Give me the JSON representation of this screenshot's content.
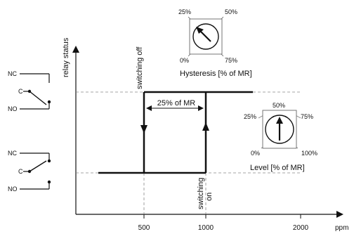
{
  "axes": {
    "y_label": "relay status",
    "x_unit": "ppm",
    "x_ticks": [
      "500",
      "1000",
      "2000"
    ]
  },
  "annotations": {
    "switching_off": "switching off",
    "switching_on_1": "switching",
    "switching_on_2": "on",
    "hysteresis_width": "25% of MR"
  },
  "hysteresis_dial": {
    "title": "Hysteresis [% of MR]",
    "labels": [
      "25%",
      "50%",
      "0%",
      "75%"
    ]
  },
  "level_dial": {
    "title": "Level [% of MR]",
    "labels": [
      "25%",
      "50%",
      "75%",
      "0%",
      "100%"
    ]
  },
  "relay_top": {
    "nc": "NC",
    "c": "C",
    "no": "NO"
  },
  "relay_bottom": {
    "nc": "NC",
    "c": "C",
    "no": "NO"
  }
}
